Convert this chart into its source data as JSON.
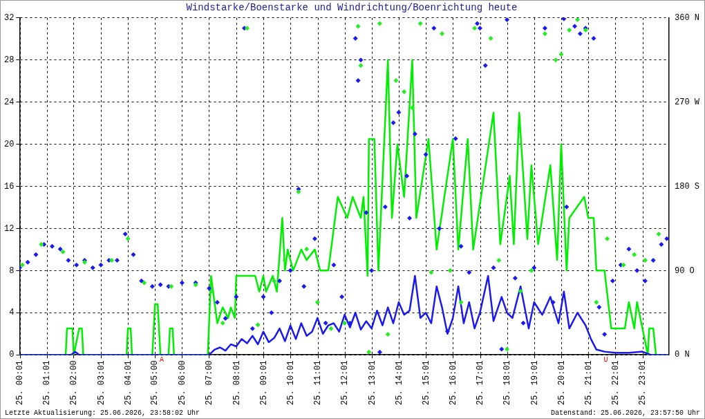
{
  "chart_data": {
    "type": "line",
    "title": "Windstarke/Boenstarke und Windrichtung/Boenrichtung heute",
    "xlim": [
      "2026-06-25T00:00",
      "2026-06-25T23:59"
    ],
    "xticks": [
      {
        "value": "2026-06-25T00:01",
        "label": "25. 00:01"
      },
      {
        "value": "2026-06-25T01:01",
        "label": "25. 01:01"
      },
      {
        "value": "2026-06-25T02:00",
        "label": "25. 02:00"
      },
      {
        "value": "2026-06-25T03:01",
        "label": "25. 03:01"
      },
      {
        "value": "2026-06-25T04:01",
        "label": "25. 04:01"
      },
      {
        "value": "2026-06-25T05:00",
        "label": "25. 05:00"
      },
      {
        "value": "2026-06-25T06:00",
        "label": "25. 06:00"
      },
      {
        "value": "2026-06-25T07:00",
        "label": "25. 07:00"
      },
      {
        "value": "2026-06-25T08:01",
        "label": "25. 08:01"
      },
      {
        "value": "2026-06-25T09:01",
        "label": "25. 09:01"
      },
      {
        "value": "2026-06-25T10:01",
        "label": "25. 10:01"
      },
      {
        "value": "2026-06-25T11:01",
        "label": "25. 11:01"
      },
      {
        "value": "2026-06-25T12:01",
        "label": "25. 12:01"
      },
      {
        "value": "2026-06-25T13:01",
        "label": "25. 13:01"
      },
      {
        "value": "2026-06-25T14:01",
        "label": "25. 14:01"
      },
      {
        "value": "2026-06-25T15:01",
        "label": "25. 15:01"
      },
      {
        "value": "2026-06-25T16:01",
        "label": "25. 16:01"
      },
      {
        "value": "2026-06-25T17:01",
        "label": "25. 17:01"
      },
      {
        "value": "2026-06-25T18:01",
        "label": "25. 18:01"
      },
      {
        "value": "2026-06-25T19:01",
        "label": "25. 19:01"
      },
      {
        "value": "2026-06-25T20:01",
        "label": "25. 20:01"
      },
      {
        "value": "2026-06-25T21:01",
        "label": "25. 21:01"
      },
      {
        "value": "2026-06-25T22:01",
        "label": "25. 22:01"
      },
      {
        "value": "2026-06-25T23:01",
        "label": "25. 23:01"
      }
    ],
    "ylim": [
      0,
      32
    ],
    "yticks": [
      0,
      4,
      8,
      12,
      16,
      20,
      24,
      28,
      32
    ],
    "y2lim": [
      0,
      360
    ],
    "y2ticks": [
      {
        "value": 0,
        "label": "0 N"
      },
      {
        "value": 90,
        "label": "90 O"
      },
      {
        "value": 180,
        "label": "180 S"
      },
      {
        "value": 270,
        "label": "270 W"
      },
      {
        "value": 360,
        "label": "360 N"
      }
    ],
    "grid": true,
    "legend": false,
    "annotations": [
      {
        "text": "A",
        "x": "2026-06-25T05:15",
        "y": 0
      },
      {
        "text": "U",
        "x": "2026-06-25T21:39",
        "y": 0
      },
      "Letzte Aktualisierung: 25.06.2026, 23:58:02 Uhr",
      "Datenstand: 25.06.2026, 23:57:50 Uhr"
    ],
    "series": [
      {
        "color": "#00ee00",
        "marker": "none",
        "x": [
          "2026-06-25T00:00",
          "2026-06-25T01:42",
          "2026-06-25T01:45",
          "2026-06-25T01:57",
          "2026-06-25T02:00",
          "2026-06-25T02:12",
          "2026-06-25T02:18",
          "2026-06-25T02:21",
          "2026-06-25T03:57",
          "2026-06-25T04:00",
          "2026-06-25T04:06",
          "2026-06-25T04:09",
          "2026-06-25T04:54",
          "2026-06-25T05:00",
          "2026-06-25T05:06",
          "2026-06-25T05:12",
          "2026-06-25T05:30",
          "2026-06-25T05:33",
          "2026-06-25T05:39",
          "2026-06-25T05:42",
          "2026-06-25T06:57",
          "2026-06-25T07:04",
          "2026-06-25T07:18",
          "2026-06-25T07:30",
          "2026-06-25T07:42",
          "2026-06-25T07:48",
          "2026-06-25T07:57",
          "2026-06-25T08:00",
          "2026-06-25T08:42",
          "2026-06-25T08:51",
          "2026-06-25T09:00",
          "2026-06-25T09:06",
          "2026-06-25T09:21",
          "2026-06-25T09:30",
          "2026-06-25T09:42",
          "2026-06-25T09:48",
          "2026-06-25T09:54",
          "2026-06-25T10:06",
          "2026-06-25T10:24",
          "2026-06-25T10:36",
          "2026-06-25T10:54",
          "2026-06-25T11:06",
          "2026-06-25T11:24",
          "2026-06-25T11:45",
          "2026-06-25T12:06",
          "2026-06-25T12:18",
          "2026-06-25T12:36",
          "2026-06-25T12:42",
          "2026-06-25T12:51",
          "2026-06-25T12:54",
          "2026-06-25T13:06",
          "2026-06-25T13:15",
          "2026-06-25T13:36",
          "2026-06-25T13:45",
          "2026-06-25T13:57",
          "2026-06-25T14:12",
          "2026-06-25T14:30",
          "2026-06-25T14:39",
          "2026-06-25T15:06",
          "2026-06-25T15:24",
          "2026-06-25T16:00",
          "2026-06-25T16:12",
          "2026-06-25T16:33",
          "2026-06-25T16:45",
          "2026-06-25T17:30",
          "2026-06-25T17:45",
          "2026-06-25T18:06",
          "2026-06-25T18:15",
          "2026-06-25T18:27",
          "2026-06-25T18:45",
          "2026-06-25T18:54",
          "2026-06-25T19:09",
          "2026-06-25T19:36",
          "2026-06-25T19:51",
          "2026-06-25T20:00",
          "2026-06-25T20:12",
          "2026-06-25T20:18",
          "2026-06-25T20:51",
          "2026-06-25T21:00",
          "2026-06-25T21:12",
          "2026-06-25T21:18",
          "2026-06-25T21:36",
          "2026-06-25T21:51",
          "2026-06-25T22:21",
          "2026-06-25T22:30",
          "2026-06-25T22:42",
          "2026-06-25T22:48",
          "2026-06-25T23:00",
          "2026-06-25T23:12",
          "2026-06-25T23:15",
          "2026-06-25T23:24",
          "2026-06-25T23:30",
          "2026-06-25T23:57"
        ],
        "values": [
          0,
          0,
          2.5,
          2.5,
          0,
          2.5,
          2.5,
          0,
          0,
          2.5,
          2.5,
          0,
          0,
          4.8,
          4.8,
          0,
          0,
          2.5,
          2.5,
          0,
          0,
          7.5,
          3,
          4.5,
          3.5,
          4.5,
          3.5,
          7.5,
          7.5,
          6,
          7.5,
          6,
          7.5,
          6,
          13,
          8,
          10,
          8,
          10,
          9,
          10,
          8,
          8,
          15,
          13,
          15,
          13,
          15,
          7.5,
          20.5,
          20.5,
          8,
          28,
          13,
          20,
          15,
          28,
          13,
          20.5,
          10,
          20.5,
          10,
          20.5,
          10,
          23,
          10.5,
          17,
          10.5,
          23,
          11,
          18,
          10.5,
          18,
          9,
          20,
          8,
          13,
          15,
          13,
          13,
          8,
          8,
          2.5,
          2.5,
          5,
          2.5,
          5,
          2.5,
          0,
          2.5,
          2.5,
          0,
          0
        ]
      },
      {
        "color": "#1a1aee",
        "marker": "none",
        "x": [
          "2026-06-25T00:00",
          "2026-06-25T01:54",
          "2026-06-25T02:03",
          "2026-06-25T02:12",
          "2026-06-25T07:00",
          "2026-06-25T07:12",
          "2026-06-25T07:24",
          "2026-06-25T07:36",
          "2026-06-25T07:48",
          "2026-06-25T08:00",
          "2026-06-25T08:12",
          "2026-06-25T08:24",
          "2026-06-25T08:36",
          "2026-06-25T08:48",
          "2026-06-25T09:00",
          "2026-06-25T09:12",
          "2026-06-25T09:24",
          "2026-06-25T09:36",
          "2026-06-25T09:48",
          "2026-06-25T10:00",
          "2026-06-25T10:12",
          "2026-06-25T10:24",
          "2026-06-25T10:36",
          "2026-06-25T10:48",
          "2026-06-25T11:00",
          "2026-06-25T11:12",
          "2026-06-25T11:24",
          "2026-06-25T11:36",
          "2026-06-25T11:48",
          "2026-06-25T12:00",
          "2026-06-25T12:12",
          "2026-06-25T12:24",
          "2026-06-25T12:36",
          "2026-06-25T12:48",
          "2026-06-25T13:00",
          "2026-06-25T13:12",
          "2026-06-25T13:24",
          "2026-06-25T13:36",
          "2026-06-25T13:48",
          "2026-06-25T14:00",
          "2026-06-25T14:12",
          "2026-06-25T14:24",
          "2026-06-25T14:36",
          "2026-06-25T14:48",
          "2026-06-25T15:00",
          "2026-06-25T15:12",
          "2026-06-25T15:24",
          "2026-06-25T15:36",
          "2026-06-25T15:48",
          "2026-06-25T16:00",
          "2026-06-25T16:12",
          "2026-06-25T16:24",
          "2026-06-25T16:36",
          "2026-06-25T16:48",
          "2026-06-25T17:00",
          "2026-06-25T17:18",
          "2026-06-25T17:30",
          "2026-06-25T17:48",
          "2026-06-25T18:00",
          "2026-06-25T18:12",
          "2026-06-25T18:30",
          "2026-06-25T18:48",
          "2026-06-25T19:00",
          "2026-06-25T19:18",
          "2026-06-25T19:36",
          "2026-06-25T19:54",
          "2026-06-25T20:06",
          "2026-06-25T20:18",
          "2026-06-25T20:36",
          "2026-06-25T20:54",
          "2026-06-25T21:06",
          "2026-06-25T21:18",
          "2026-06-25T21:36",
          "2026-06-25T22:00",
          "2026-06-25T22:30",
          "2026-06-25T23:00",
          "2026-06-25T23:18",
          "2026-06-25T23:30",
          "2026-06-25T23:57"
        ],
        "values": [
          0,
          0,
          0.3,
          0,
          0,
          0.5,
          0.7,
          0.4,
          1,
          0.8,
          1.5,
          1.1,
          1.8,
          1,
          2.2,
          1.2,
          1.6,
          2.5,
          1.3,
          2.8,
          1.5,
          3,
          1.8,
          2.2,
          3.5,
          2,
          2.8,
          3,
          2.2,
          3.8,
          2.6,
          4,
          2.4,
          3.2,
          2.5,
          4.2,
          2.8,
          4.5,
          3,
          5,
          3.8,
          4.2,
          7.5,
          3.5,
          4,
          3,
          6.5,
          4.5,
          2,
          3.5,
          6.5,
          3,
          5,
          2.5,
          4,
          7.5,
          3.2,
          5.5,
          4,
          3.5,
          6.5,
          2.5,
          5,
          3.8,
          5.5,
          3,
          6,
          2.5,
          4,
          2.8,
          1.5,
          0.5,
          0.3,
          0.2,
          0.2,
          0.3,
          0,
          0,
          0
        ]
      },
      {
        "type": "scatter",
        "axis": "y2",
        "color": "#1a1aee",
        "marker": "diamond",
        "x": [
          "2026-06-25T00:00",
          "2026-06-25T00:18",
          "2026-06-25T00:36",
          "2026-06-25T00:54",
          "2026-06-25T01:12",
          "2026-06-25T01:30",
          "2026-06-25T01:48",
          "2026-06-25T02:06",
          "2026-06-25T02:24",
          "2026-06-25T02:42",
          "2026-06-25T03:00",
          "2026-06-25T03:18",
          "2026-06-25T03:36",
          "2026-06-25T03:54",
          "2026-06-25T04:12",
          "2026-06-25T04:30",
          "2026-06-25T04:54",
          "2026-06-25T05:12",
          "2026-06-25T05:30",
          "2026-06-25T06:00",
          "2026-06-25T06:30",
          "2026-06-25T07:00",
          "2026-06-25T07:18",
          "2026-06-25T07:36",
          "2026-06-25T08:00",
          "2026-06-25T08:18",
          "2026-06-25T08:36",
          "2026-06-25T09:00",
          "2026-06-25T09:18",
          "2026-06-25T09:36",
          "2026-06-25T10:00",
          "2026-06-25T10:18",
          "2026-06-25T10:30",
          "2026-06-25T10:54",
          "2026-06-25T11:18",
          "2026-06-25T11:36",
          "2026-06-25T11:54",
          "2026-06-25T12:12",
          "2026-06-25T12:24",
          "2026-06-25T12:30",
          "2026-06-25T12:36",
          "2026-06-25T12:48",
          "2026-06-25T13:00",
          "2026-06-25T13:18",
          "2026-06-25T13:30",
          "2026-06-25T13:48",
          "2026-06-25T14:00",
          "2026-06-25T14:18",
          "2026-06-25T14:24",
          "2026-06-25T14:36",
          "2026-06-25T15:00",
          "2026-06-25T15:18",
          "2026-06-25T15:30",
          "2026-06-25T15:48",
          "2026-06-25T16:06",
          "2026-06-25T16:18",
          "2026-06-25T16:36",
          "2026-06-25T16:54",
          "2026-06-25T17:00",
          "2026-06-25T17:12",
          "2026-06-25T17:30",
          "2026-06-25T17:48",
          "2026-06-25T18:00",
          "2026-06-25T18:18",
          "2026-06-25T18:36",
          "2026-06-25T19:00",
          "2026-06-25T19:24",
          "2026-06-25T19:42",
          "2026-06-25T20:06",
          "2026-06-25T20:12",
          "2026-06-25T20:30",
          "2026-06-25T20:42",
          "2026-06-25T20:54",
          "2026-06-25T21:12",
          "2026-06-25T21:24",
          "2026-06-25T21:36",
          "2026-06-25T21:54",
          "2026-06-25T22:12",
          "2026-06-25T22:30",
          "2026-06-25T22:48",
          "2026-06-25T23:06",
          "2026-06-25T23:24",
          "2026-06-25T23:42",
          "2026-06-25T23:54"
        ],
        "values": [
          93,
          99,
          107,
          118,
          116,
          113,
          101,
          96,
          101,
          93,
          96,
          101,
          101,
          129,
          107,
          79,
          73,
          75,
          73,
          77,
          77,
          71,
          56,
          39,
          62,
          349,
          28,
          62,
          45,
          79,
          90,
          177,
          73,
          124,
          34,
          96,
          62,
          34,
          338,
          293,
          315,
          152,
          90,
          3,
          158,
          248,
          259,
          191,
          146,
          236,
          214,
          349,
          135,
          25,
          231,
          116,
          88,
          354,
          349,
          309,
          93,
          6,
          358,
          82,
          34,
          93,
          349,
          56,
          359,
          158,
          351,
          343,
          349,
          338,
          51,
          22,
          79,
          96,
          113,
          90,
          79,
          101,
          118,
          124
        ]
      },
      {
        "type": "scatter",
        "axis": "y2",
        "color": "#22ee22",
        "marker": "diamond",
        "x": [
          "2026-06-25T00:06",
          "2026-06-25T00:48",
          "2026-06-25T01:36",
          "2026-06-25T02:24",
          "2026-06-25T03:24",
          "2026-06-25T04:00",
          "2026-06-25T04:36",
          "2026-06-25T05:36",
          "2026-06-25T06:30",
          "2026-06-25T07:06",
          "2026-06-25T07:30",
          "2026-06-25T08:24",
          "2026-06-25T08:48",
          "2026-06-25T09:24",
          "2026-06-25T09:48",
          "2026-06-25T10:18",
          "2026-06-25T10:36",
          "2026-06-25T11:00",
          "2026-06-25T11:30",
          "2026-06-25T12:00",
          "2026-06-25T12:30",
          "2026-06-25T12:36",
          "2026-06-25T12:54",
          "2026-06-25T13:18",
          "2026-06-25T13:36",
          "2026-06-25T13:54",
          "2026-06-25T14:12",
          "2026-06-25T14:30",
          "2026-06-25T14:48",
          "2026-06-25T15:12",
          "2026-06-25T15:36",
          "2026-06-25T15:54",
          "2026-06-25T16:18",
          "2026-06-25T16:48",
          "2026-06-25T17:24",
          "2026-06-25T17:42",
          "2026-06-25T18:00",
          "2026-06-25T18:30",
          "2026-06-25T18:54",
          "2026-06-25T19:24",
          "2026-06-25T19:48",
          "2026-06-25T20:00",
          "2026-06-25T20:18",
          "2026-06-25T20:36",
          "2026-06-25T20:54",
          "2026-06-25T21:18",
          "2026-06-25T21:42",
          "2026-06-25T22:18",
          "2026-06-25T22:42",
          "2026-06-25T23:06",
          "2026-06-25T23:36"
        ],
        "values": [
          96,
          118,
          110,
          99,
          101,
          124,
          77,
          73,
          75,
          68,
          34,
          349,
          32,
          79,
          101,
          174,
          113,
          56,
          28,
          34,
          351,
          309,
          3,
          354,
          22,
          293,
          281,
          264,
          354,
          88,
          343,
          90,
          56,
          349,
          338,
          101,
          6,
          68,
          90,
          343,
          315,
          321,
          347,
          358,
          347,
          56,
          124,
          96,
          107,
          101,
          129
        ]
      }
    ]
  }
}
